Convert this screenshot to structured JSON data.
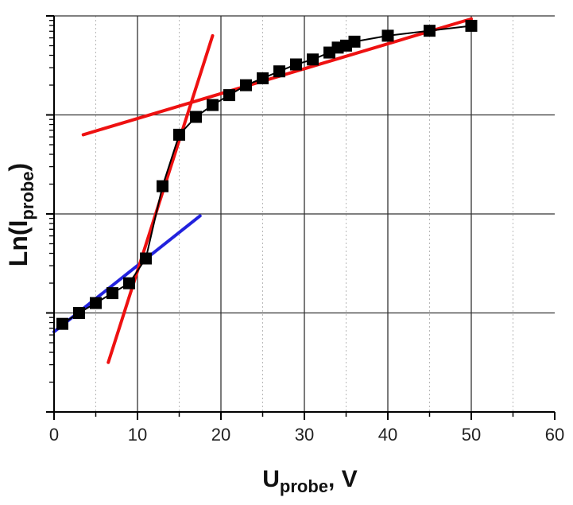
{
  "chart_data": {
    "type": "scatter",
    "title": "",
    "xlabel": {
      "main": "U",
      "sub": "probe",
      "suffix": ", V"
    },
    "ylabel": {
      "main": "Ln(I",
      "sub": "probe",
      "suffix": ")"
    },
    "xlim": [
      0,
      60
    ],
    "x_ticks": [
      0,
      10,
      20,
      30,
      40,
      50,
      60
    ],
    "x_minor_grid_step": 5,
    "ylim": [
      -2.0,
      2.0
    ],
    "y_major_grid": [
      -1.0,
      0.0,
      1.0
    ],
    "y_ticks_labeled": false,
    "y_scale": "log",
    "grid": true,
    "series": [
      {
        "marker": "square",
        "color": "#000000",
        "connected": true,
        "x": [
          1,
          3,
          5,
          7,
          9,
          11,
          13,
          15,
          17,
          19,
          21,
          23,
          25,
          27,
          29,
          31,
          33,
          34,
          35,
          36,
          40,
          45,
          50
        ],
        "y": [
          -1.11,
          -1.0,
          -0.9,
          -0.8,
          -0.7,
          -0.45,
          0.28,
          0.8,
          0.98,
          1.1,
          1.2,
          1.3,
          1.37,
          1.44,
          1.51,
          1.56,
          1.63,
          1.68,
          1.7,
          1.74,
          1.8,
          1.85,
          1.9
        ]
      }
    ],
    "fit_lines": [
      {
        "color": "#2222dd",
        "x": [
          0,
          17.5
        ],
        "y": [
          -1.19,
          -0.02
        ]
      },
      {
        "color": "#ee1111",
        "x": [
          6.5,
          19
        ],
        "y": [
          -1.5,
          1.8
        ]
      },
      {
        "color": "#ee1111",
        "x": [
          3.5,
          50
        ],
        "y": [
          0.8,
          1.97
        ]
      }
    ]
  }
}
